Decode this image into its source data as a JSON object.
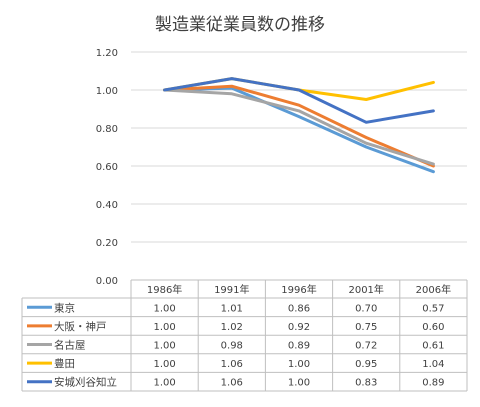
{
  "chart_data": {
    "type": "line",
    "title": "製造業従業員数の推移",
    "categories": [
      "1986年",
      "1991年",
      "1996年",
      "2001年",
      "2006年"
    ],
    "ylim": [
      0,
      1.2
    ],
    "yticks": [
      "0.00",
      "0.20",
      "0.40",
      "0.60",
      "0.80",
      "1.00",
      "1.20"
    ],
    "grid": true,
    "legend": "data-table",
    "series": [
      {
        "name": "東京",
        "color": "#5B9BD5",
        "values": [
          1.0,
          1.01,
          0.86,
          0.7,
          0.57
        ],
        "labels": [
          "1.00",
          "1.01",
          "0.86",
          "0.70",
          "0.57"
        ]
      },
      {
        "name": "大阪・神戸",
        "color": "#ED7D31",
        "values": [
          1.0,
          1.02,
          0.92,
          0.75,
          0.6
        ],
        "labels": [
          "1.00",
          "1.02",
          "0.92",
          "0.75",
          "0.60"
        ]
      },
      {
        "name": "名古屋",
        "color": "#A5A5A5",
        "values": [
          1.0,
          0.98,
          0.89,
          0.72,
          0.61
        ],
        "labels": [
          "1.00",
          "0.98",
          "0.89",
          "0.72",
          "0.61"
        ]
      },
      {
        "name": "豊田",
        "color": "#FFC000",
        "values": [
          1.0,
          1.06,
          1.0,
          0.95,
          1.04
        ],
        "labels": [
          "1.00",
          "1.06",
          "1.00",
          "0.95",
          "1.04"
        ]
      },
      {
        "name": "安城刈谷知立",
        "color": "#4472C4",
        "values": [
          1.0,
          1.06,
          1.0,
          0.83,
          0.89
        ],
        "labels": [
          "1.00",
          "1.06",
          "1.00",
          "0.83",
          "0.89"
        ]
      }
    ]
  }
}
